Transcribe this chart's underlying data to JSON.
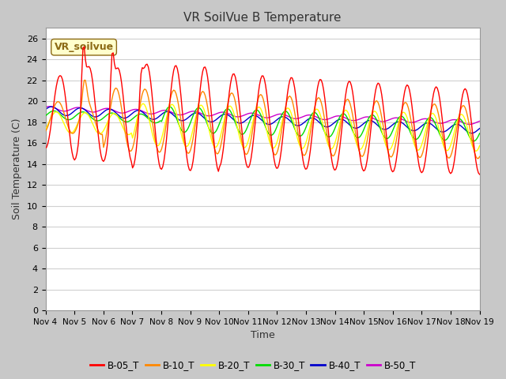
{
  "title": "VR SoilVue B Temperature",
  "xlabel": "Time",
  "ylabel": "Soil Temperature (C)",
  "ylim": [
    0,
    27
  ],
  "yticks": [
    0,
    2,
    4,
    6,
    8,
    10,
    12,
    14,
    16,
    18,
    20,
    22,
    24,
    26
  ],
  "x_labels": [
    "Nov 4",
    "Nov 5",
    "Nov 6",
    "Nov 7",
    "Nov 8",
    "Nov 9",
    "Nov 10",
    "Nov 11",
    "Nov 12",
    "Nov 13",
    "Nov 14",
    "Nov 15",
    "Nov 16",
    "Nov 17",
    "Nov 18",
    "Nov 19"
  ],
  "series_colors": {
    "B-05_T": "#ff0000",
    "B-10_T": "#ff8800",
    "B-20_T": "#ffff00",
    "B-30_T": "#00dd00",
    "B-40_T": "#0000cc",
    "B-50_T": "#cc00cc"
  },
  "linewidth": 1.0,
  "watermark": "VR_soilvue",
  "watermark_color": "#8B6914",
  "watermark_bg": "#ffffcc",
  "watermark_border": "#8B6914",
  "fig_bg": "#c8c8c8",
  "plot_bg": "#ffffff",
  "grid_color": "#d0d0d0",
  "title_fontsize": 11,
  "axis_label_fontsize": 9,
  "tick_fontsize": 8
}
